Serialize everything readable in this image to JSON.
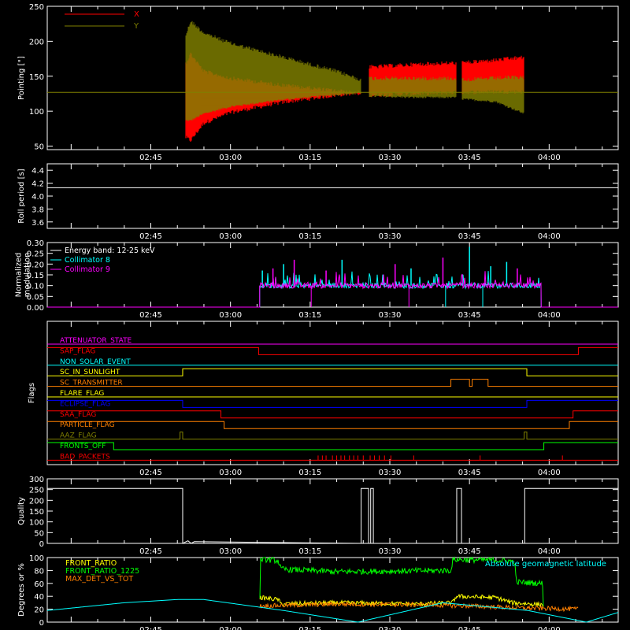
{
  "x_ticks": [
    "02:45",
    "03:00",
    "03:15",
    "03:30",
    "03:45",
    "04:00"
  ],
  "x_tick_minutes": [
    165,
    180,
    195,
    210,
    225,
    240
  ],
  "x_range_minutes": [
    145.5,
    253
  ],
  "chart_data": [
    {
      "id": "pointing",
      "type": "line",
      "ylabel": "Pointing [\"]",
      "ylim": [
        45,
        250
      ],
      "yticks": [
        50,
        100,
        150,
        200,
        250
      ],
      "legend_position": "top-left",
      "reference_line": 127,
      "segments": [
        [
          171.5,
          204.6
        ],
        [
          206.0,
          222.6
        ],
        [
          223.5,
          235.3
        ]
      ],
      "series": [
        {
          "name": "X",
          "color": "#ff0000",
          "envelope_x": [
            171.5,
            172.5,
            175,
            180,
            190,
            200,
            204.6,
            206,
            215,
            222.6,
            223.5,
            230,
            235.3
          ],
          "envelope_high": [
            170,
            185,
            160,
            150,
            140,
            132,
            128,
            166,
            170,
            172,
            172,
            176,
            180
          ],
          "envelope_low": [
            60,
            55,
            80,
            95,
            110,
            120,
            124,
            120,
            122,
            124,
            124,
            125,
            125
          ]
        },
        {
          "name": "Y",
          "color": "#808000",
          "envelope_x": [
            171.5,
            172.5,
            175,
            180,
            190,
            200,
            204.6,
            206,
            215,
            222.6,
            223.5,
            230,
            235.3
          ],
          "envelope_high": [
            210,
            232,
            215,
            200,
            180,
            160,
            148,
            150,
            150,
            150,
            148,
            150,
            152
          ],
          "envelope_low": [
            85,
            85,
            95,
            105,
            115,
            122,
            124,
            120,
            118,
            118,
            116,
            112,
            95
          ]
        }
      ]
    },
    {
      "id": "roll_period",
      "type": "line",
      "ylabel": "Roll period [s]",
      "ylim": [
        3.5,
        4.5
      ],
      "yticks": [
        3.6,
        3.8,
        4.0,
        4.2,
        4.4
      ],
      "series": [
        {
          "name": "",
          "color": "#ffffff",
          "x": [
            145.5,
            253
          ],
          "y": [
            4.13,
            4.13
          ]
        }
      ]
    },
    {
      "id": "modulation",
      "type": "line",
      "ylabel": "Normalized modulation",
      "ylim": [
        0,
        0.3
      ],
      "yticks": [
        "0.00",
        "0.05",
        "0.10",
        "0.15",
        "0.20",
        "0.25",
        "0.30"
      ],
      "legend": [
        "Energy band: 12-25 keV",
        "Collimator 8",
        "Collimator 9"
      ],
      "legend_position": "top-left",
      "active_range": [
        185.5,
        238.5
      ],
      "series": [
        {
          "name": "Collimator 8",
          "color": "#00ffff",
          "baseline": 0.1,
          "spikes_x": [
            186,
            190,
            201,
            214,
            225,
            229,
            232
          ],
          "spikes_y": [
            0.17,
            0.2,
            0.22,
            0.18,
            0.28,
            0.19,
            0.21
          ]
        },
        {
          "name": "Collimator 9",
          "color": "#ff00ff",
          "baseline": 0.1,
          "spikes_x": [
            188,
            192,
            198,
            211,
            220,
            234
          ],
          "spikes_y": [
            0.18,
            0.22,
            0.17,
            0.2,
            0.23,
            0.18
          ]
        }
      ]
    },
    {
      "id": "flags",
      "type": "line",
      "ylabel": "Flags",
      "flags": [
        {
          "name": "ATTENUATOR_STATE",
          "color": "#ff00ff",
          "steps": [
            [
              145.5,
              0
            ],
            [
              253,
              0
            ]
          ]
        },
        {
          "name": "SAP_FLAG",
          "color": "#ff0000",
          "steps": [
            [
              145.5,
              1
            ],
            [
              185.3,
              0
            ],
            [
              245.5,
              1
            ],
            [
              253,
              1
            ]
          ]
        },
        {
          "name": "NON_SOLAR_EVENT",
          "color": "#00ffff",
          "steps": [
            [
              145.5,
              0
            ],
            [
              253,
              0
            ]
          ]
        },
        {
          "name": "SC_IN_SUNLIGHT",
          "color": "#ffff00",
          "steps": [
            [
              145.5,
              0
            ],
            [
              171.0,
              1
            ],
            [
              235.8,
              0
            ],
            [
              253,
              0
            ]
          ]
        },
        {
          "name": "SC_TRANSMITTER",
          "color": "#ff8000",
          "steps": [
            [
              145.5,
              0
            ],
            [
              221.5,
              1
            ],
            [
              225.0,
              0
            ],
            [
              225.5,
              1
            ],
            [
              228.5,
              0
            ],
            [
              253,
              0
            ]
          ]
        },
        {
          "name": "FLARE_FLAG",
          "color": "#ffff00",
          "steps": [
            [
              145.5,
              0
            ],
            [
              253,
              0
            ]
          ]
        },
        {
          "name": "ECLIPSE_FLAG",
          "color": "#0000ff",
          "steps": [
            [
              145.5,
              1
            ],
            [
              171.0,
              0
            ],
            [
              235.8,
              1
            ],
            [
              253,
              1
            ]
          ]
        },
        {
          "name": "SAA_FLAG",
          "color": "#ff0000",
          "steps": [
            [
              145.5,
              1
            ],
            [
              178.2,
              0
            ],
            [
              244.5,
              1
            ],
            [
              253,
              1
            ]
          ]
        },
        {
          "name": "PARTICLE_FLAG",
          "color": "#ff8000",
          "steps": [
            [
              145.5,
              1
            ],
            [
              178.8,
              0
            ],
            [
              243.8,
              1
            ],
            [
              253,
              1
            ]
          ]
        },
        {
          "name": "AAZ_FLAG",
          "color": "#808000",
          "steps": [
            [
              145.5,
              0
            ],
            [
              170.5,
              1
            ],
            [
              171.0,
              0
            ],
            [
              235.3,
              1
            ],
            [
              235.8,
              0
            ],
            [
              253,
              0
            ]
          ]
        },
        {
          "name": "FRONTS_OFF",
          "color": "#00ff00",
          "steps": [
            [
              145.5,
              1
            ],
            [
              158.0,
              0
            ],
            [
              239.0,
              1
            ],
            [
              253,
              1
            ]
          ]
        },
        {
          "name": "BAD_PACKETS",
          "color": "#ff0000",
          "spikes": [
            196.5,
            197.3,
            198.0,
            199.2,
            200.0,
            200.8,
            201.5,
            202.4,
            203.2,
            204.0,
            205.0,
            206.3,
            207.1,
            208.0,
            209.0,
            210.2,
            214.5,
            227.0,
            242.5
          ]
        }
      ]
    },
    {
      "id": "quality",
      "type": "line",
      "ylabel": "Quality",
      "ylim": [
        0,
        300
      ],
      "yticks": [
        0,
        50,
        100,
        150,
        200,
        250,
        300
      ],
      "series": [
        {
          "name": "",
          "color": "#ffffff",
          "x": [
            145.5,
            171.0,
            171.0,
            172.0,
            172.6,
            173.2,
            204.6,
            204.6,
            206.0,
            206.0,
            206.4,
            206.4,
            206.9,
            206.9,
            222.6,
            222.6,
            223.5,
            223.5,
            235.4,
            235.4,
            253
          ],
          "y": [
            255,
            255,
            0,
            12,
            0,
            8,
            0,
            255,
            255,
            0,
            0,
            255,
            255,
            0,
            0,
            255,
            255,
            0,
            0,
            255,
            255
          ]
        }
      ]
    },
    {
      "id": "ratios",
      "type": "line",
      "ylabel": "Degrees or %",
      "ylim": [
        0,
        100
      ],
      "yticks": [
        0,
        20,
        40,
        60,
        80,
        100
      ],
      "legend": [
        "FRONT_RATIO",
        "FRONT_RATIO_1225",
        "MAX_DET_VS_TOT"
      ],
      "annotation": "Absolute geomagnetic latitude",
      "series": [
        {
          "name": "FRONT_RATIO",
          "color": "#ffff00",
          "x": [
            185.5,
            189,
            189.5,
            200,
            215,
            221.8,
            222.5,
            230,
            233,
            239
          ],
          "y": [
            38,
            35,
            28,
            30,
            28,
            30,
            40,
            38,
            30,
            27
          ]
        },
        {
          "name": "FRONT_RATIO_1225",
          "color": "#00ff00",
          "x": [
            185.5,
            185.6,
            189,
            189.5,
            200,
            210,
            221.6,
            221.8,
            230,
            233.5,
            233.8,
            238.8,
            239
          ],
          "y": [
            0,
            98,
            95,
            82,
            78,
            79,
            80,
            97,
            96,
            94,
            62,
            60,
            0
          ]
        },
        {
          "name": "MAX_DET_VS_TOT",
          "color": "#ff8000",
          "x": [
            185.5,
            200,
            215,
            225,
            235,
            245.5
          ],
          "y": [
            25,
            28,
            27,
            25,
            22,
            20
          ]
        },
        {
          "name": "Absolute geomagnetic latitude",
          "color": "#00ffff",
          "x": [
            145.5,
            160,
            170,
            175,
            190,
            204,
            220,
            236,
            247,
            253
          ],
          "y": [
            18,
            30,
            35,
            35,
            18,
            0,
            30,
            18,
            0,
            15
          ]
        }
      ]
    }
  ]
}
